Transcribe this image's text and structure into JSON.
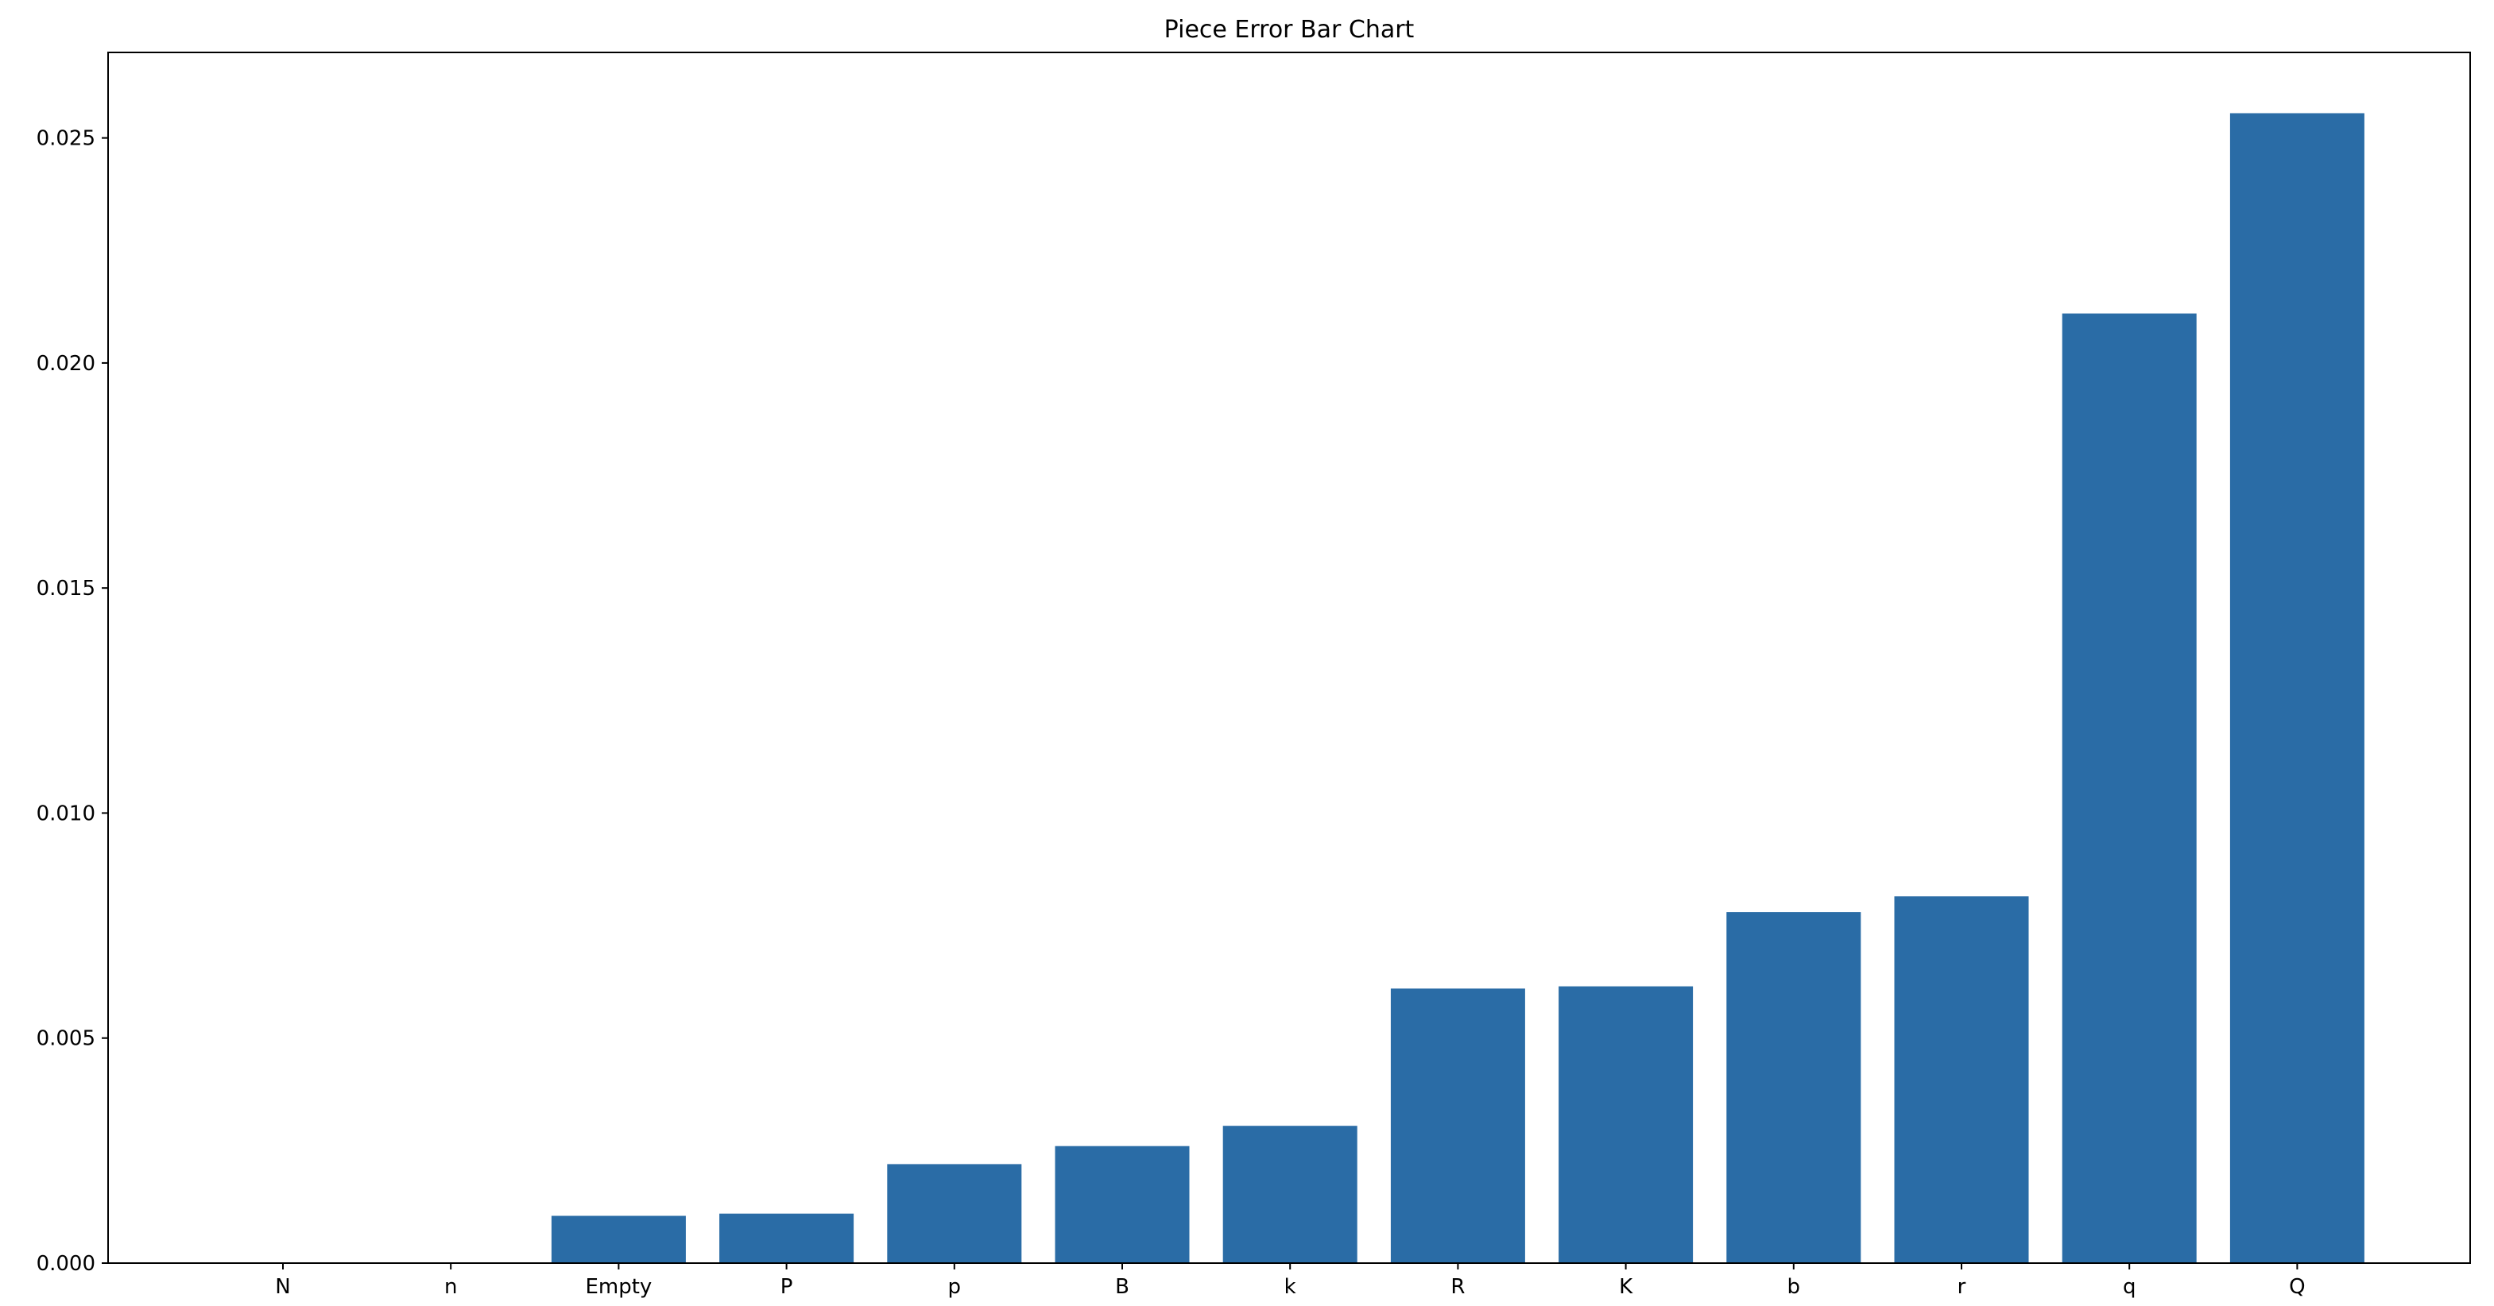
{
  "chart_data": {
    "type": "bar",
    "title": "Piece Error Bar Chart",
    "xlabel": "",
    "ylabel": "",
    "categories": [
      "N",
      "n",
      "Empty",
      "P",
      "p",
      "B",
      "k",
      "R",
      "K",
      "b",
      "r",
      "q",
      "Q"
    ],
    "values": [
      0.0,
      0.0,
      0.00105,
      0.0011,
      0.0022,
      0.0026,
      0.00305,
      0.0061,
      0.00615,
      0.0078,
      0.00815,
      0.0211,
      0.02555
    ],
    "ylim": [
      0,
      0.0269
    ],
    "yticks": [
      "0.000",
      "0.005",
      "0.010",
      "0.015",
      "0.020",
      "0.025"
    ],
    "ytick_values": [
      0,
      0.005,
      0.01,
      0.015,
      0.02,
      0.025
    ],
    "grid": false,
    "legend": "none",
    "bar_color": "#2a6ca6"
  }
}
